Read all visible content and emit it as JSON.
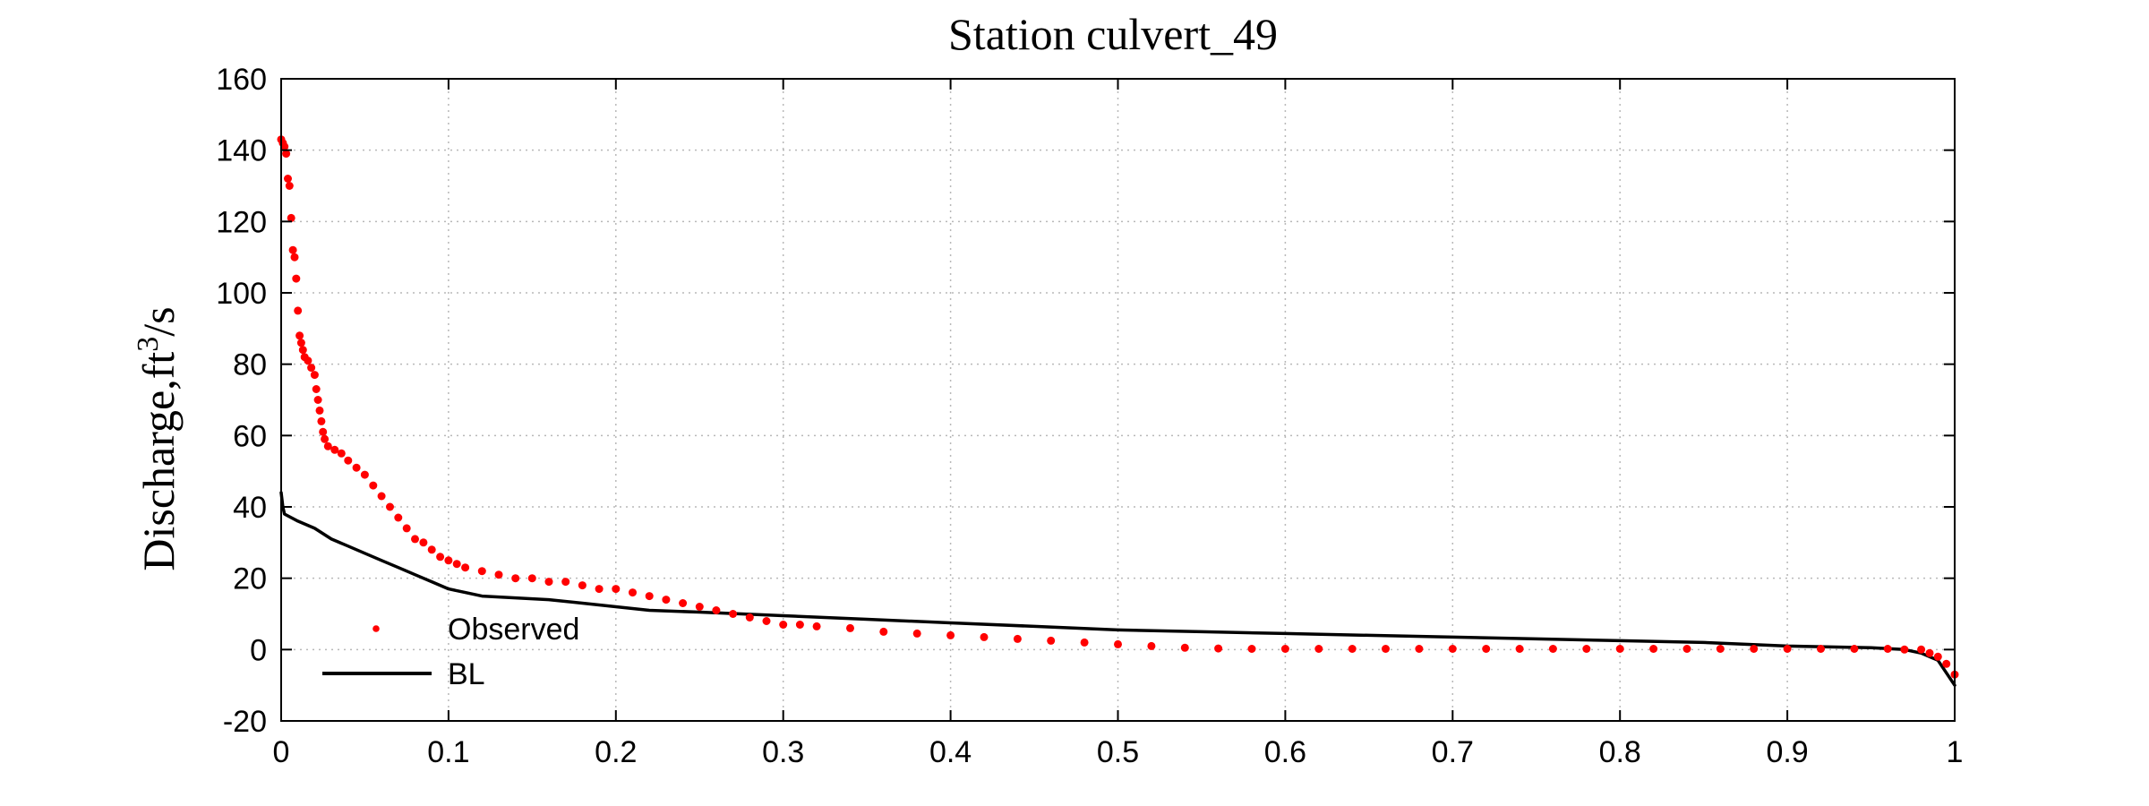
{
  "chart_data": {
    "type": "scatter",
    "title": "Station culvert_49",
    "ylabel": "Discharge,ft",
    "ylabel_sup": "3",
    "ylabel_suffix": "/s",
    "xlabel": "",
    "xlim": [
      0,
      1
    ],
    "ylim": [
      -20,
      160
    ],
    "xticks": [
      0,
      0.1,
      0.2,
      0.3,
      0.4,
      0.5,
      0.6,
      0.7,
      0.8,
      0.9,
      1
    ],
    "xtick_labels": [
      "0",
      "0.1",
      "0.2",
      "0.3",
      "0.4",
      "0.5",
      "0.6",
      "0.7",
      "0.8",
      "0.9",
      "1"
    ],
    "yticks": [
      -20,
      0,
      20,
      40,
      60,
      80,
      100,
      120,
      140,
      160
    ],
    "ytick_labels": [
      "-20",
      "0",
      "20",
      "40",
      "60",
      "80",
      "100",
      "120",
      "140",
      "160"
    ],
    "grid": true,
    "legend_position": "bottom-left",
    "series": [
      {
        "name": "Observed",
        "style": "dots",
        "color": "#ff0000",
        "points": [
          [
            0.0,
            143
          ],
          [
            0.001,
            142
          ],
          [
            0.002,
            141
          ],
          [
            0.003,
            139
          ],
          [
            0.004,
            132
          ],
          [
            0.005,
            130
          ],
          [
            0.006,
            121
          ],
          [
            0.007,
            112
          ],
          [
            0.008,
            110
          ],
          [
            0.009,
            104
          ],
          [
            0.01,
            95
          ],
          [
            0.011,
            88
          ],
          [
            0.012,
            86
          ],
          [
            0.013,
            84
          ],
          [
            0.014,
            82
          ],
          [
            0.016,
            81
          ],
          [
            0.018,
            79
          ],
          [
            0.02,
            77
          ],
          [
            0.021,
            73
          ],
          [
            0.022,
            70
          ],
          [
            0.023,
            67
          ],
          [
            0.024,
            64
          ],
          [
            0.025,
            61
          ],
          [
            0.026,
            59
          ],
          [
            0.028,
            57
          ],
          [
            0.032,
            56
          ],
          [
            0.036,
            55
          ],
          [
            0.04,
            53
          ],
          [
            0.045,
            51
          ],
          [
            0.05,
            49
          ],
          [
            0.055,
            46
          ],
          [
            0.06,
            43
          ],
          [
            0.065,
            40
          ],
          [
            0.07,
            37
          ],
          [
            0.075,
            34
          ],
          [
            0.08,
            31
          ],
          [
            0.085,
            30
          ],
          [
            0.09,
            28
          ],
          [
            0.095,
            26
          ],
          [
            0.1,
            25
          ],
          [
            0.105,
            24
          ],
          [
            0.11,
            23
          ],
          [
            0.12,
            22
          ],
          [
            0.13,
            21
          ],
          [
            0.14,
            20
          ],
          [
            0.15,
            20
          ],
          [
            0.16,
            19
          ],
          [
            0.17,
            19
          ],
          [
            0.18,
            18
          ],
          [
            0.19,
            17
          ],
          [
            0.2,
            17
          ],
          [
            0.21,
            16
          ],
          [
            0.22,
            15
          ],
          [
            0.23,
            14
          ],
          [
            0.24,
            13
          ],
          [
            0.25,
            12
          ],
          [
            0.26,
            11
          ],
          [
            0.27,
            10
          ],
          [
            0.28,
            9
          ],
          [
            0.29,
            8
          ],
          [
            0.3,
            7
          ],
          [
            0.31,
            7
          ],
          [
            0.32,
            6.5
          ],
          [
            0.34,
            6
          ],
          [
            0.36,
            5
          ],
          [
            0.38,
            4.5
          ],
          [
            0.4,
            4
          ],
          [
            0.42,
            3.5
          ],
          [
            0.44,
            3
          ],
          [
            0.46,
            2.5
          ],
          [
            0.48,
            2
          ],
          [
            0.5,
            1.5
          ],
          [
            0.52,
            1
          ],
          [
            0.54,
            0.5
          ],
          [
            0.56,
            0.3
          ],
          [
            0.58,
            0.2
          ],
          [
            0.6,
            0.2
          ],
          [
            0.62,
            0.2
          ],
          [
            0.64,
            0.2
          ],
          [
            0.66,
            0.2
          ],
          [
            0.68,
            0.2
          ],
          [
            0.7,
            0.2
          ],
          [
            0.72,
            0.2
          ],
          [
            0.74,
            0.2
          ],
          [
            0.76,
            0.2
          ],
          [
            0.78,
            0.2
          ],
          [
            0.8,
            0.2
          ],
          [
            0.82,
            0.2
          ],
          [
            0.84,
            0.2
          ],
          [
            0.86,
            0.2
          ],
          [
            0.88,
            0.2
          ],
          [
            0.9,
            0.2
          ],
          [
            0.92,
            0.2
          ],
          [
            0.94,
            0.2
          ],
          [
            0.96,
            0.2
          ],
          [
            0.97,
            0
          ],
          [
            0.98,
            0
          ],
          [
            0.985,
            -1
          ],
          [
            0.99,
            -2
          ],
          [
            0.995,
            -4
          ],
          [
            1.0,
            -7
          ]
        ]
      },
      {
        "name": "BL",
        "style": "line",
        "color": "#000000",
        "points": [
          [
            0.0,
            44
          ],
          [
            0.001,
            40
          ],
          [
            0.002,
            38
          ],
          [
            0.01,
            36
          ],
          [
            0.02,
            34
          ],
          [
            0.03,
            31
          ],
          [
            0.04,
            29
          ],
          [
            0.05,
            27
          ],
          [
            0.06,
            25
          ],
          [
            0.07,
            23
          ],
          [
            0.08,
            21
          ],
          [
            0.09,
            19
          ],
          [
            0.1,
            17
          ],
          [
            0.11,
            16
          ],
          [
            0.12,
            15
          ],
          [
            0.14,
            14.5
          ],
          [
            0.16,
            14
          ],
          [
            0.18,
            13
          ],
          [
            0.2,
            12
          ],
          [
            0.22,
            11
          ],
          [
            0.25,
            10.5
          ],
          [
            0.3,
            9.5
          ],
          [
            0.35,
            8.5
          ],
          [
            0.4,
            7.5
          ],
          [
            0.45,
            6.5
          ],
          [
            0.5,
            5.5
          ],
          [
            0.55,
            5
          ],
          [
            0.6,
            4.5
          ],
          [
            0.65,
            4
          ],
          [
            0.7,
            3.5
          ],
          [
            0.75,
            3
          ],
          [
            0.8,
            2.5
          ],
          [
            0.85,
            2
          ],
          [
            0.9,
            1
          ],
          [
            0.95,
            0.5
          ],
          [
            0.97,
            0
          ],
          [
            0.98,
            -1
          ],
          [
            0.99,
            -3
          ],
          [
            1.0,
            -10
          ]
        ]
      }
    ]
  }
}
